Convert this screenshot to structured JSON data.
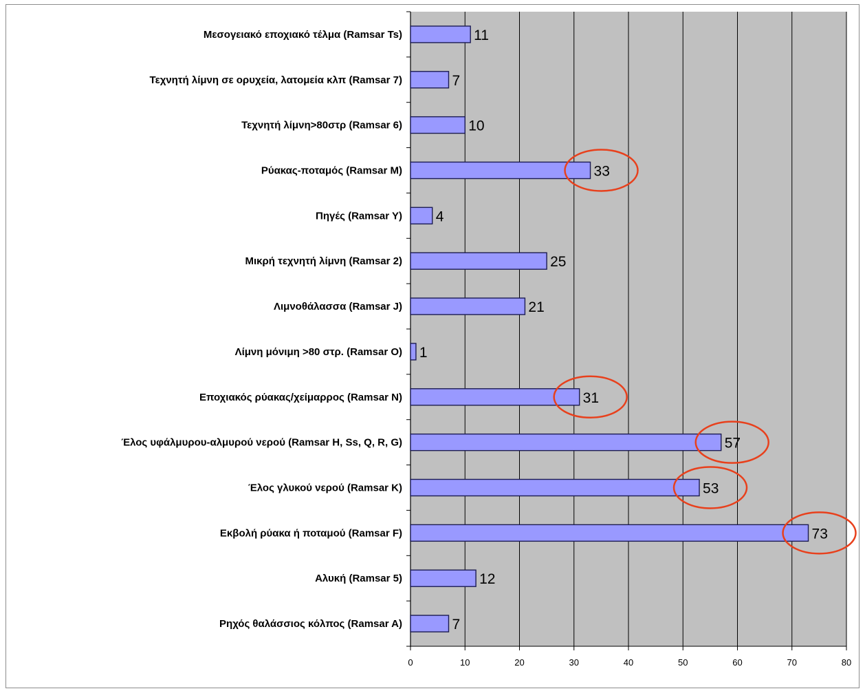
{
  "chart_data": {
    "type": "bar",
    "orientation": "horizontal",
    "categories": [
      "Μεσογειακό εποχιακό τέλμα  (Ramsar Ts)",
      "Τεχνητή λίμνη σε ορυχεία, λατομεία κλπ (Ramsar 7)",
      "Τεχνητή λίμνη>80στρ (Ramsar 6)",
      "Ρύακας-ποταμός (Ramsar M)",
      "Πηγές (Ramsar Y)",
      "Μικρή τεχνητή λίμνη (Ramsar 2)",
      "Λιμνοθάλασσα (Ramsar J)",
      "Λίμνη μόνιμη >80 στρ. (Ramsar O)",
      "Εποχιακός ρύακας/χείμαρρος (Ramsar N)",
      "Έλος υφάλμυρου-αλμυρού νερού (Ramsar H, Ss, Q, R, G)",
      "Έλος γλυκού νερού (Ramsar K)",
      "Εκβολή ρύακα ή ποταμού (Ramsar F)",
      "Αλυκή (Ramsar 5)",
      "Ρηχός θαλάσσιος κόλπος (Ramsar A)"
    ],
    "values": [
      11,
      7,
      10,
      33,
      4,
      25,
      21,
      1,
      31,
      57,
      53,
      73,
      12,
      7
    ],
    "highlighted": [
      false,
      false,
      false,
      true,
      false,
      false,
      false,
      false,
      true,
      true,
      true,
      true,
      false,
      false
    ],
    "xlim": [
      0,
      80
    ],
    "xticks": [
      "0",
      "10",
      "20",
      "30",
      "40",
      "50",
      "60",
      "70",
      "80"
    ],
    "grid": "vertical",
    "title": "",
    "xlabel": "",
    "ylabel": "",
    "colors": {
      "bar_fill": "#9999ff",
      "bar_stroke": "#1c1c52",
      "plot_background": "#c0c0c0",
      "highlight_circle": "#e8401c"
    }
  }
}
